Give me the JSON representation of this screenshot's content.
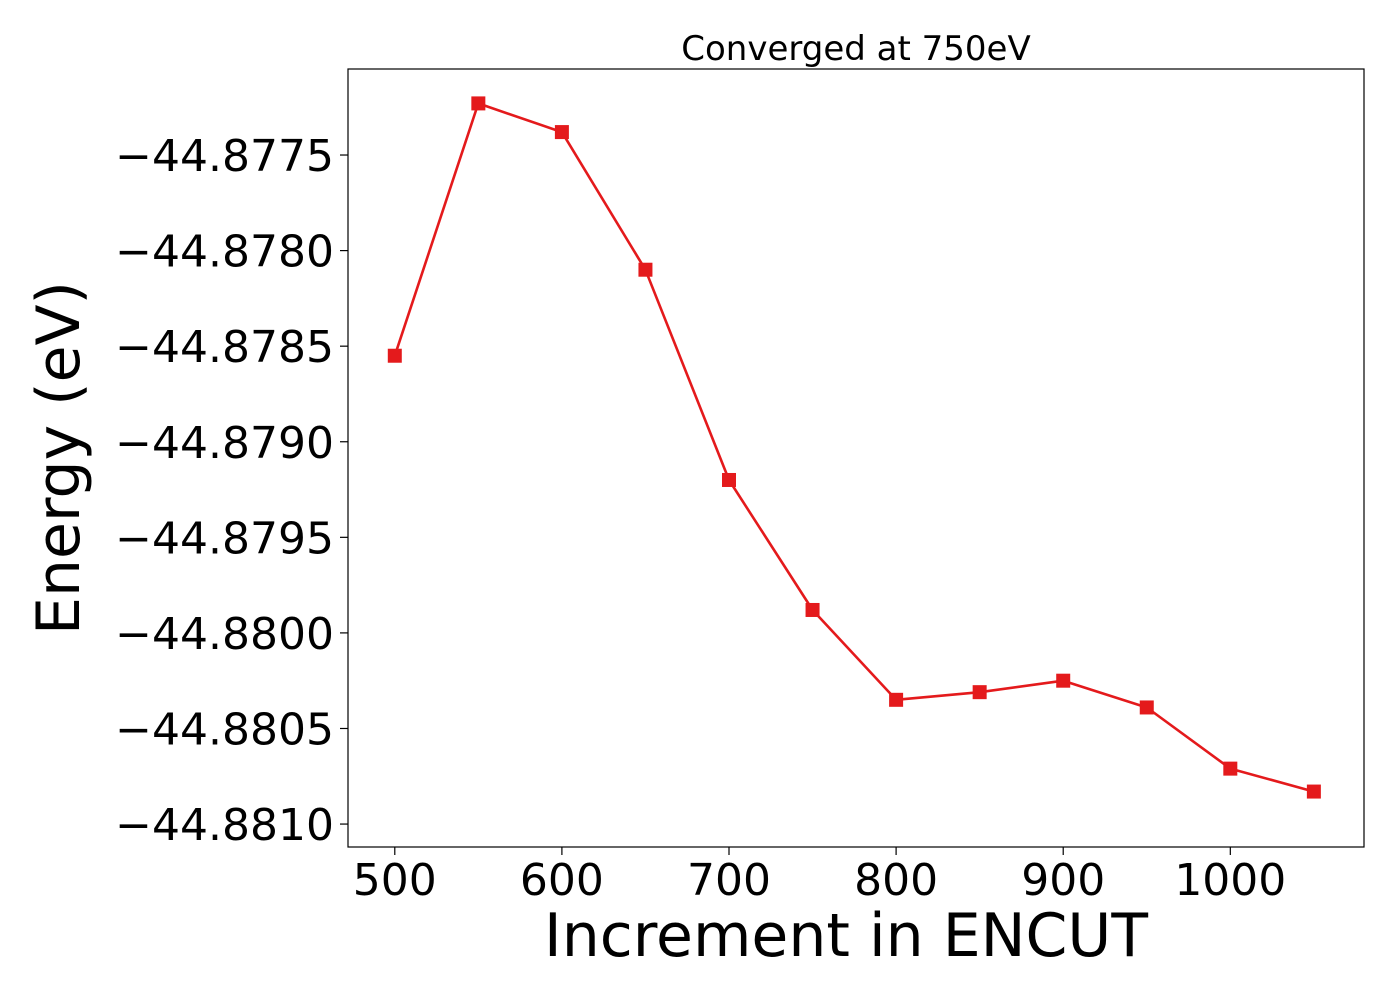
{
  "chart_data": {
    "type": "line",
    "title": "Converged at 750eV",
    "xlabel": "Increment in ENCUT",
    "ylabel": "Energy (eV)",
    "x": [
      500,
      550,
      600,
      650,
      700,
      750,
      800,
      850,
      900,
      950,
      1000,
      1050
    ],
    "series": [
      {
        "values": [
          -44.87855,
          -44.87723,
          -44.87738,
          -44.8781,
          -44.8792,
          -44.87988,
          -44.88035,
          -44.88031,
          -44.88025,
          -44.88039,
          -44.88071,
          -44.88083
        ],
        "color": "#e41a1c",
        "marker": "square"
      }
    ],
    "xlim": [
      472,
      1080
    ],
    "ylim": [
      -44.88112,
      -44.87705
    ],
    "xticks": [
      500,
      600,
      700,
      800,
      900,
      1000
    ],
    "xtick_labels": [
      "500",
      "600",
      "700",
      "800",
      "900",
      "1000"
    ],
    "yticks": [
      -44.8775,
      -44.878,
      -44.8785,
      -44.879,
      -44.8795,
      -44.88,
      -44.8805,
      -44.881
    ],
    "ytick_labels": [
      "−44.8775",
      "−44.8780",
      "−44.8785",
      "−44.8790",
      "−44.8795",
      "−44.8800",
      "−44.8805",
      "−44.8810"
    ],
    "grid": false,
    "legend": "none"
  }
}
